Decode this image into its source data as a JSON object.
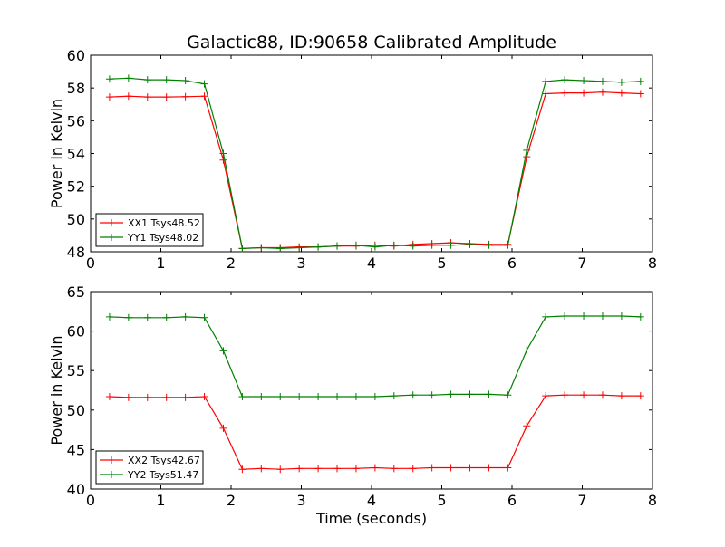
{
  "figure": {
    "title": "Galactic88, ID:90658 Calibrated Amplitude",
    "xlabel": "Time (seconds)"
  },
  "chart_data": [
    {
      "type": "line",
      "title": "Galactic88, ID:90658 Calibrated Amplitude",
      "xlabel": "",
      "ylabel": "Power in Kelvin",
      "xlim": [
        0,
        8
      ],
      "ylim": [
        48,
        60
      ],
      "xticks": [
        0,
        1,
        2,
        3,
        4,
        5,
        6,
        7,
        8
      ],
      "yticks": [
        48,
        50,
        52,
        54,
        56,
        58,
        60
      ],
      "grid": false,
      "legend_position": "lower-left",
      "x": [
        0.27,
        0.54,
        0.81,
        1.08,
        1.35,
        1.62,
        1.89,
        2.16,
        2.43,
        2.7,
        2.97,
        3.24,
        3.51,
        3.78,
        4.05,
        4.32,
        4.59,
        4.86,
        5.13,
        5.4,
        5.67,
        5.94,
        6.21,
        6.48,
        6.75,
        7.02,
        7.29,
        7.56,
        7.83
      ],
      "series": [
        {
          "name": "XX1 Tsys48.52",
          "color": "#ff0000",
          "values": [
            57.45,
            57.5,
            57.45,
            57.45,
            57.47,
            57.5,
            53.6,
            48.2,
            48.25,
            48.25,
            48.3,
            48.3,
            48.35,
            48.35,
            48.4,
            48.35,
            48.45,
            48.5,
            48.55,
            48.5,
            48.45,
            48.45,
            53.8,
            57.65,
            57.7,
            57.7,
            57.75,
            57.7,
            57.65
          ]
        },
        {
          "name": "YY1 Tsys48.02",
          "color": "#008000",
          "values": [
            58.55,
            58.6,
            58.5,
            58.5,
            58.45,
            58.25,
            54.0,
            48.2,
            48.25,
            48.2,
            48.25,
            48.3,
            48.35,
            48.4,
            48.3,
            48.4,
            48.35,
            48.4,
            48.4,
            48.45,
            48.4,
            48.4,
            54.2,
            58.4,
            58.5,
            58.45,
            58.4,
            58.35,
            58.4
          ]
        }
      ]
    },
    {
      "type": "line",
      "title": "",
      "xlabel": "Time (seconds)",
      "ylabel": "Power in Kelvin",
      "xlim": [
        0,
        8
      ],
      "ylim": [
        40,
        65
      ],
      "xticks": [
        0,
        1,
        2,
        3,
        4,
        5,
        6,
        7,
        8
      ],
      "yticks": [
        40,
        45,
        50,
        55,
        60,
        65
      ],
      "grid": false,
      "legend_position": "lower-left",
      "x": [
        0.27,
        0.54,
        0.81,
        1.08,
        1.35,
        1.62,
        1.89,
        2.16,
        2.43,
        2.7,
        2.97,
        3.24,
        3.51,
        3.78,
        4.05,
        4.32,
        4.59,
        4.86,
        5.13,
        5.4,
        5.67,
        5.94,
        6.21,
        6.48,
        6.75,
        7.02,
        7.29,
        7.56,
        7.83
      ],
      "series": [
        {
          "name": "XX2 Tsys42.67",
          "color": "#ff0000",
          "values": [
            51.7,
            51.6,
            51.6,
            51.6,
            51.6,
            51.7,
            47.7,
            42.5,
            42.6,
            42.5,
            42.6,
            42.6,
            42.6,
            42.6,
            42.7,
            42.6,
            42.6,
            42.7,
            42.7,
            42.7,
            42.7,
            42.7,
            48.0,
            51.8,
            51.9,
            51.9,
            51.9,
            51.8,
            51.8
          ]
        },
        {
          "name": "YY2 Tsys51.47",
          "color": "#008000",
          "values": [
            61.8,
            61.7,
            61.7,
            61.7,
            61.8,
            61.7,
            57.5,
            51.7,
            51.7,
            51.7,
            51.7,
            51.7,
            51.7,
            51.7,
            51.7,
            51.8,
            51.9,
            51.9,
            52.0,
            52.0,
            52.0,
            51.9,
            57.6,
            61.8,
            61.9,
            61.9,
            61.9,
            61.9,
            61.8
          ]
        }
      ]
    }
  ]
}
